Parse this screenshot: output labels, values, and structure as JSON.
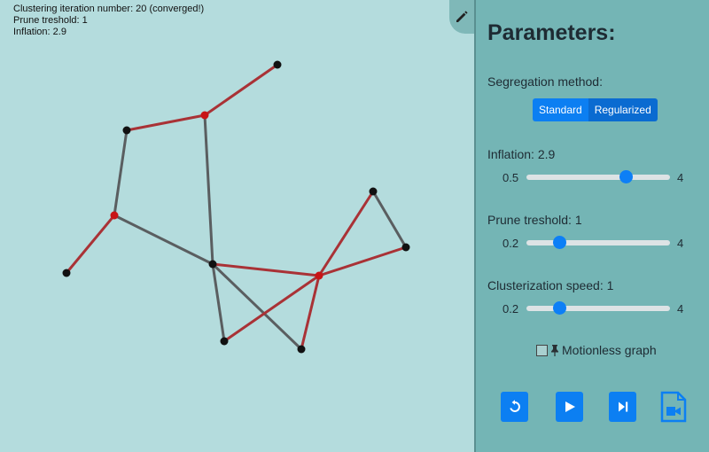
{
  "status": {
    "iteration": "Clustering iteration number: 20 (converged!)",
    "prune": "Prune treshold: 1",
    "inflation": "Inflation: 2.9"
  },
  "panel": {
    "title": "Parameters:",
    "segregation_label": "Segregation method:",
    "segregation_options": [
      "Standard",
      "Regularized"
    ],
    "segregation_selected": "Standard",
    "inflation": {
      "label": "Inflation:  2.9",
      "min": "0.5",
      "max": "4",
      "value": 2.9
    },
    "prune": {
      "label": "Prune treshold:  1",
      "min": "0.2",
      "max": "4",
      "value": 1
    },
    "speed": {
      "label": "Clusterization speed:  1",
      "min": "0.2",
      "max": "4",
      "value": 1
    },
    "motionless_label": "Motionless graph",
    "motionless_checked": false
  },
  "colors": {
    "background": "#b4dcdd",
    "panel": "#74b5b5",
    "accent": "#0c7ff2",
    "edge_cluster": "#a93236",
    "edge_plain": "#5a5e60",
    "node_center": "#c81416",
    "node": "#111111"
  },
  "icons": [
    "pencil-icon",
    "pin-icon",
    "reset-icon",
    "play-icon",
    "step-icon",
    "record-video-icon"
  ]
}
